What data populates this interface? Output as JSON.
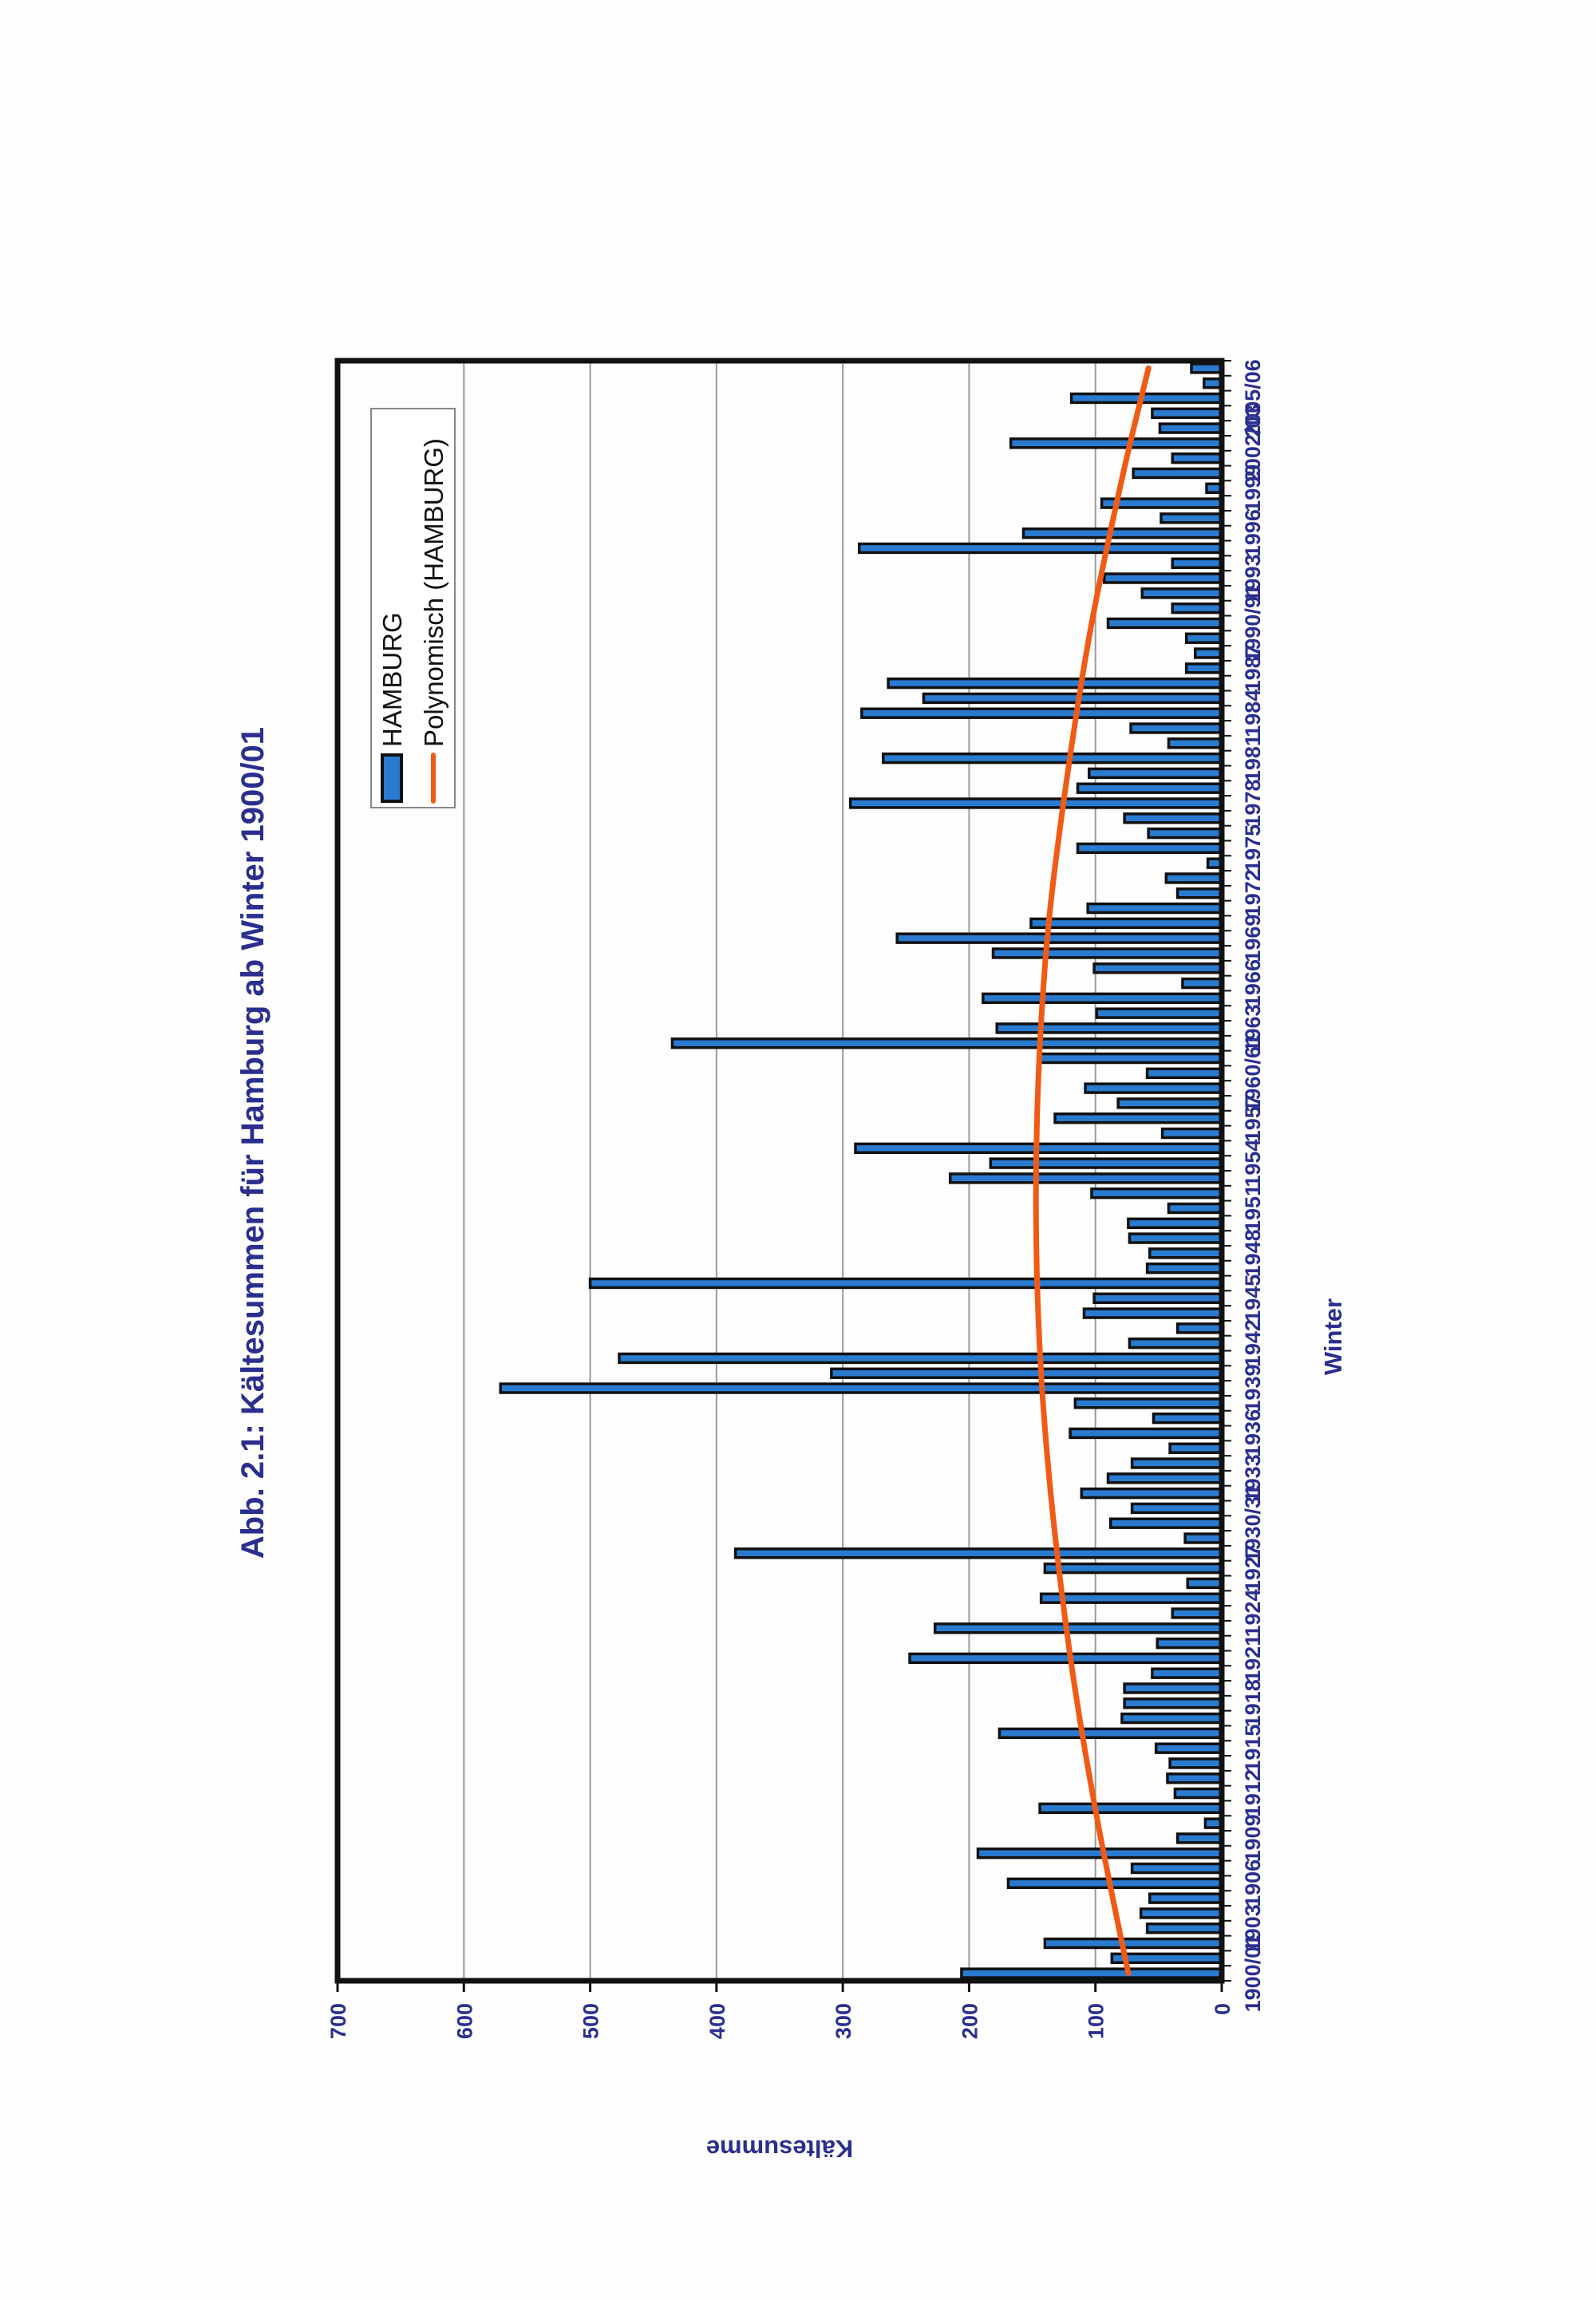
{
  "page": {
    "orientation": "rotated-landscape"
  },
  "chart_data": {
    "type": "bar",
    "title": "Abb. 2.1: Kältesummen für Hamburg ab Winter 1900/01",
    "xlabel": "Winter",
    "ylabel": "Kältesumme",
    "ylim": [
      0,
      700
    ],
    "yticks": [
      0,
      100,
      200,
      300,
      400,
      500,
      600,
      700
    ],
    "grid": true,
    "legend_position": "top-right",
    "colors": {
      "bar_fill": "#2a7bd0",
      "bar_border": "#111111",
      "trend": "#f05a14",
      "text": "#2a2f8f"
    },
    "tick_labels": [
      {
        "index": 0,
        "label": "1900/01"
      },
      {
        "index": 3,
        "label": "1903"
      },
      {
        "index": 6,
        "label": "1906"
      },
      {
        "index": 9,
        "label": "1909"
      },
      {
        "index": 12,
        "label": "1912"
      },
      {
        "index": 15,
        "label": "1915"
      },
      {
        "index": 18,
        "label": "1918"
      },
      {
        "index": 21,
        "label": "1921"
      },
      {
        "index": 24,
        "label": "1924"
      },
      {
        "index": 27,
        "label": "1927"
      },
      {
        "index": 30,
        "label": "1930/31"
      },
      {
        "index": 33,
        "label": "1933"
      },
      {
        "index": 36,
        "label": "1936"
      },
      {
        "index": 39,
        "label": "1939"
      },
      {
        "index": 42,
        "label": "1942"
      },
      {
        "index": 45,
        "label": "1945"
      },
      {
        "index": 48,
        "label": "1948"
      },
      {
        "index": 51,
        "label": "1951"
      },
      {
        "index": 54,
        "label": "1954"
      },
      {
        "index": 57,
        "label": "1957"
      },
      {
        "index": 60,
        "label": "1960/61"
      },
      {
        "index": 63,
        "label": "1963"
      },
      {
        "index": 66,
        "label": "1966"
      },
      {
        "index": 69,
        "label": "1969"
      },
      {
        "index": 72,
        "label": "1972"
      },
      {
        "index": 75,
        "label": "1975"
      },
      {
        "index": 78,
        "label": "1978"
      },
      {
        "index": 81,
        "label": "1981"
      },
      {
        "index": 84,
        "label": "1984"
      },
      {
        "index": 87,
        "label": "1987"
      },
      {
        "index": 90,
        "label": "1990/91"
      },
      {
        "index": 93,
        "label": "1993"
      },
      {
        "index": 96,
        "label": "1996"
      },
      {
        "index": 99,
        "label": "1999"
      },
      {
        "index": 102,
        "label": "2002/03"
      },
      {
        "index": 105,
        "label": "2005/06"
      }
    ],
    "categories": [
      "1900/01",
      "1901/02",
      "1902/03",
      "1903/04",
      "1904/05",
      "1905/06",
      "1906/07",
      "1907/08",
      "1908/09",
      "1909/10",
      "1910/11",
      "1911/12",
      "1912/13",
      "1913/14",
      "1914/15",
      "1915/16",
      "1916/17",
      "1917/18",
      "1918/19",
      "1919/20",
      "1920/21",
      "1921/22",
      "1922/23",
      "1923/24",
      "1924/25",
      "1925/26",
      "1926/27",
      "1927/28",
      "1928/29",
      "1929/30",
      "1930/31",
      "1931/32",
      "1932/33",
      "1933/34",
      "1934/35",
      "1935/36",
      "1936/37",
      "1937/38",
      "1938/39",
      "1939/40",
      "1940/41",
      "1941/42",
      "1942/43",
      "1943/44",
      "1944/45",
      "1945/46",
      "1946/47",
      "1947/48",
      "1948/49",
      "1949/50",
      "1950/51",
      "1951/52",
      "1952/53",
      "1953/54",
      "1954/55",
      "1955/56",
      "1956/57",
      "1957/58",
      "1958/59",
      "1959/60",
      "1960/61",
      "1961/62",
      "1962/63",
      "1963/64",
      "1964/65",
      "1965/66",
      "1966/67",
      "1967/68",
      "1968/69",
      "1969/70",
      "1970/71",
      "1971/72",
      "1972/73",
      "1973/74",
      "1974/75",
      "1975/76",
      "1976/77",
      "1977/78",
      "1978/79",
      "1979/80",
      "1980/81",
      "1981/82",
      "1982/83",
      "1983/84",
      "1984/85",
      "1985/86",
      "1986/87",
      "1987/88",
      "1988/89",
      "1989/90",
      "1990/91",
      "1991/92",
      "1992/93",
      "1993/94",
      "1994/95",
      "1995/96",
      "1996/97",
      "1997/98",
      "1998/99",
      "1999/00",
      "2000/01",
      "2001/02",
      "2002/03",
      "2003/04",
      "2004/05",
      "2005/06",
      "2006/07",
      "2007/08"
    ],
    "series": [
      {
        "name": "HAMBURG",
        "type": "bar",
        "values": [
          206,
          87,
          140,
          59,
          64,
          57,
          169,
          71,
          193,
          35,
          13,
          144,
          37,
          43,
          41,
          52,
          176,
          79,
          77,
          77,
          55,
          247,
          51,
          227,
          39,
          143,
          27,
          140,
          385,
          29,
          88,
          71,
          111,
          90,
          71,
          41,
          120,
          54,
          116,
          571,
          309,
          477,
          73,
          35,
          109,
          101,
          500,
          59,
          57,
          73,
          74,
          42,
          103,
          215,
          183,
          290,
          47,
          132,
          82,
          108,
          59,
          144,
          435,
          178,
          99,
          189,
          31,
          101,
          181,
          257,
          151,
          106,
          35,
          44,
          11,
          114,
          58,
          77,
          294,
          114,
          105,
          268,
          42,
          72,
          285,
          236,
          264,
          28,
          21,
          28,
          90,
          39,
          63,
          93,
          39,
          287,
          157,
          48,
          95,
          12,
          70,
          39,
          167,
          49,
          55,
          119,
          14,
          24
        ]
      },
      {
        "name": "Polynomisch (HAMBURG)",
        "type": "line",
        "description": "polynomial trend line",
        "points": [
          {
            "index": 0,
            "value": 74
          },
          {
            "index": 10,
            "value": 98
          },
          {
            "index": 20,
            "value": 118
          },
          {
            "index": 30,
            "value": 133
          },
          {
            "index": 40,
            "value": 143
          },
          {
            "index": 50,
            "value": 147
          },
          {
            "index": 60,
            "value": 145
          },
          {
            "index": 70,
            "value": 137
          },
          {
            "index": 80,
            "value": 122
          },
          {
            "index": 90,
            "value": 103
          },
          {
            "index": 100,
            "value": 78
          },
          {
            "index": 107,
            "value": 58
          }
        ]
      }
    ]
  },
  "legend": {
    "items": [
      {
        "label": "HAMBURG",
        "swatch": "bar"
      },
      {
        "label": "Polynomisch (HAMBURG)",
        "swatch": "line"
      }
    ]
  }
}
